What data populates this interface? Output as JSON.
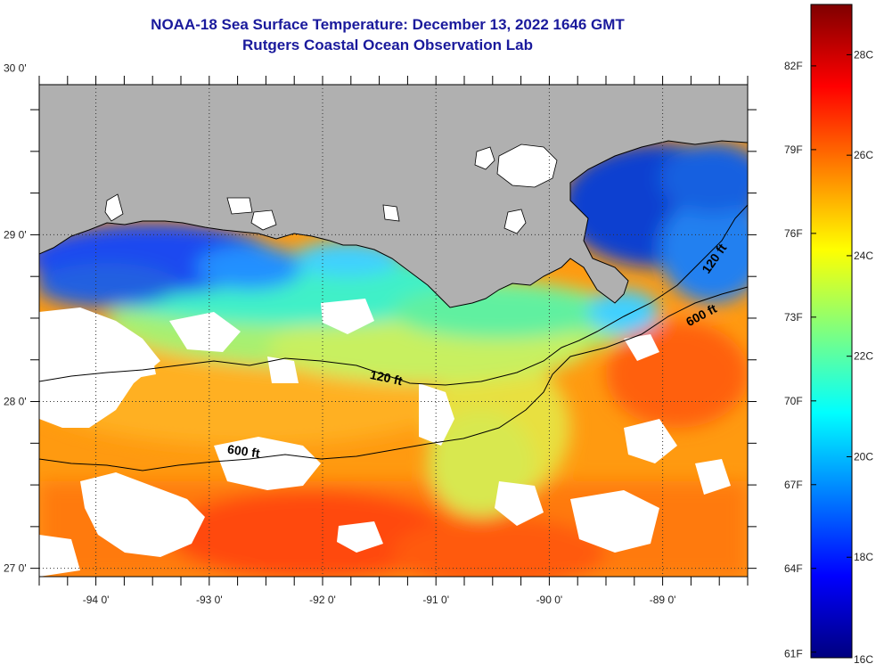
{
  "header": {
    "line1": "NOAA-18 Sea Surface Temperature:  December 13, 2022 1646 GMT",
    "line2": "Rutgers Coastal Ocean Observation Lab"
  },
  "map": {
    "lon_range": [
      -94.5,
      -88.25
    ],
    "lat_range": [
      26.95,
      29.9
    ],
    "lon_ticks": [
      {
        "value": -94,
        "label": "-94 0'"
      },
      {
        "value": -93,
        "label": "-93 0'"
      },
      {
        "value": -92,
        "label": "-92 0'"
      },
      {
        "value": -91,
        "label": "-91 0'"
      },
      {
        "value": -90,
        "label": "-90 0'"
      },
      {
        "value": -89,
        "label": "-89 0'"
      }
    ],
    "lat_ticks": [
      {
        "value": 27,
        "label": "27 0'"
      },
      {
        "value": 28,
        "label": "28 0'"
      },
      {
        "value": 29,
        "label": "29 0'"
      },
      {
        "value": 30,
        "label": "30 0'"
      }
    ],
    "colors": {
      "land": "#b0b0b0",
      "cloud": "#ffffff",
      "grid": "#333333"
    },
    "contours": [
      {
        "name": "120 ft",
        "label": "120 ft"
      },
      {
        "name": "120 ft east",
        "label": "120 ft"
      },
      {
        "name": "600 ft",
        "label": "600 ft"
      },
      {
        "name": "600 ft east",
        "label": "600 ft"
      }
    ]
  },
  "colorbar": {
    "fahrenheit_labels": [
      "82F",
      "79F",
      "76F",
      "73F",
      "70F",
      "67F",
      "64F",
      "61F"
    ],
    "celsius_labels": [
      "28C",
      "26C",
      "24C",
      "22C",
      "20C",
      "18C",
      "16C"
    ],
    "range_c": [
      16,
      29
    ],
    "stops": [
      "#00007f",
      "#0000ff",
      "#007fff",
      "#00ffff",
      "#7fff7f",
      "#ffff00",
      "#ff7f00",
      "#ff0000",
      "#7f0000"
    ]
  }
}
